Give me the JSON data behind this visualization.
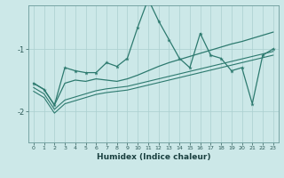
{
  "xlabel": "Humidex (Indice chaleur)",
  "background_color": "#cce8e8",
  "grid_color": "#aacfcf",
  "line_color": "#2d7a6f",
  "x_values": [
    0,
    1,
    2,
    3,
    4,
    5,
    6,
    7,
    8,
    9,
    10,
    11,
    12,
    13,
    14,
    15,
    16,
    17,
    18,
    19,
    20,
    21,
    22,
    23
  ],
  "series_zigzag": [
    -1.55,
    -1.65,
    -1.9,
    -1.3,
    -1.35,
    -1.38,
    -1.38,
    -1.22,
    -1.28,
    -1.15,
    -0.65,
    -0.2,
    -0.55,
    -0.85,
    -1.15,
    -1.3,
    -0.75,
    -1.1,
    -1.15,
    -1.35,
    -1.3,
    -1.88,
    -1.1,
    -1.0
  ],
  "series_upper": [
    -1.55,
    -1.65,
    -1.9,
    -1.55,
    -1.5,
    -1.52,
    -1.48,
    -1.5,
    -1.52,
    -1.48,
    -1.42,
    -1.35,
    -1.28,
    -1.22,
    -1.17,
    -1.12,
    -1.07,
    -1.02,
    -0.97,
    -0.92,
    -0.88,
    -0.83,
    -0.78,
    -0.73
  ],
  "series_mid": [
    -1.62,
    -1.72,
    -1.97,
    -1.82,
    -1.77,
    -1.72,
    -1.67,
    -1.64,
    -1.62,
    -1.6,
    -1.56,
    -1.52,
    -1.48,
    -1.44,
    -1.4,
    -1.36,
    -1.32,
    -1.28,
    -1.24,
    -1.2,
    -1.16,
    -1.12,
    -1.08,
    -1.04
  ],
  "series_lower": [
    -1.68,
    -1.78,
    -2.03,
    -1.88,
    -1.83,
    -1.78,
    -1.73,
    -1.7,
    -1.68,
    -1.66,
    -1.62,
    -1.58,
    -1.54,
    -1.5,
    -1.46,
    -1.42,
    -1.38,
    -1.34,
    -1.3,
    -1.26,
    -1.22,
    -1.18,
    -1.14,
    -1.1
  ],
  "ylim": [
    -2.5,
    -0.3
  ],
  "xlim": [
    -0.5,
    23.5
  ],
  "yticks": [
    -2.0,
    -1.0
  ],
  "xticks": [
    0,
    1,
    2,
    3,
    4,
    5,
    6,
    7,
    8,
    9,
    10,
    11,
    12,
    13,
    14,
    15,
    16,
    17,
    18,
    19,
    20,
    21,
    22,
    23
  ]
}
